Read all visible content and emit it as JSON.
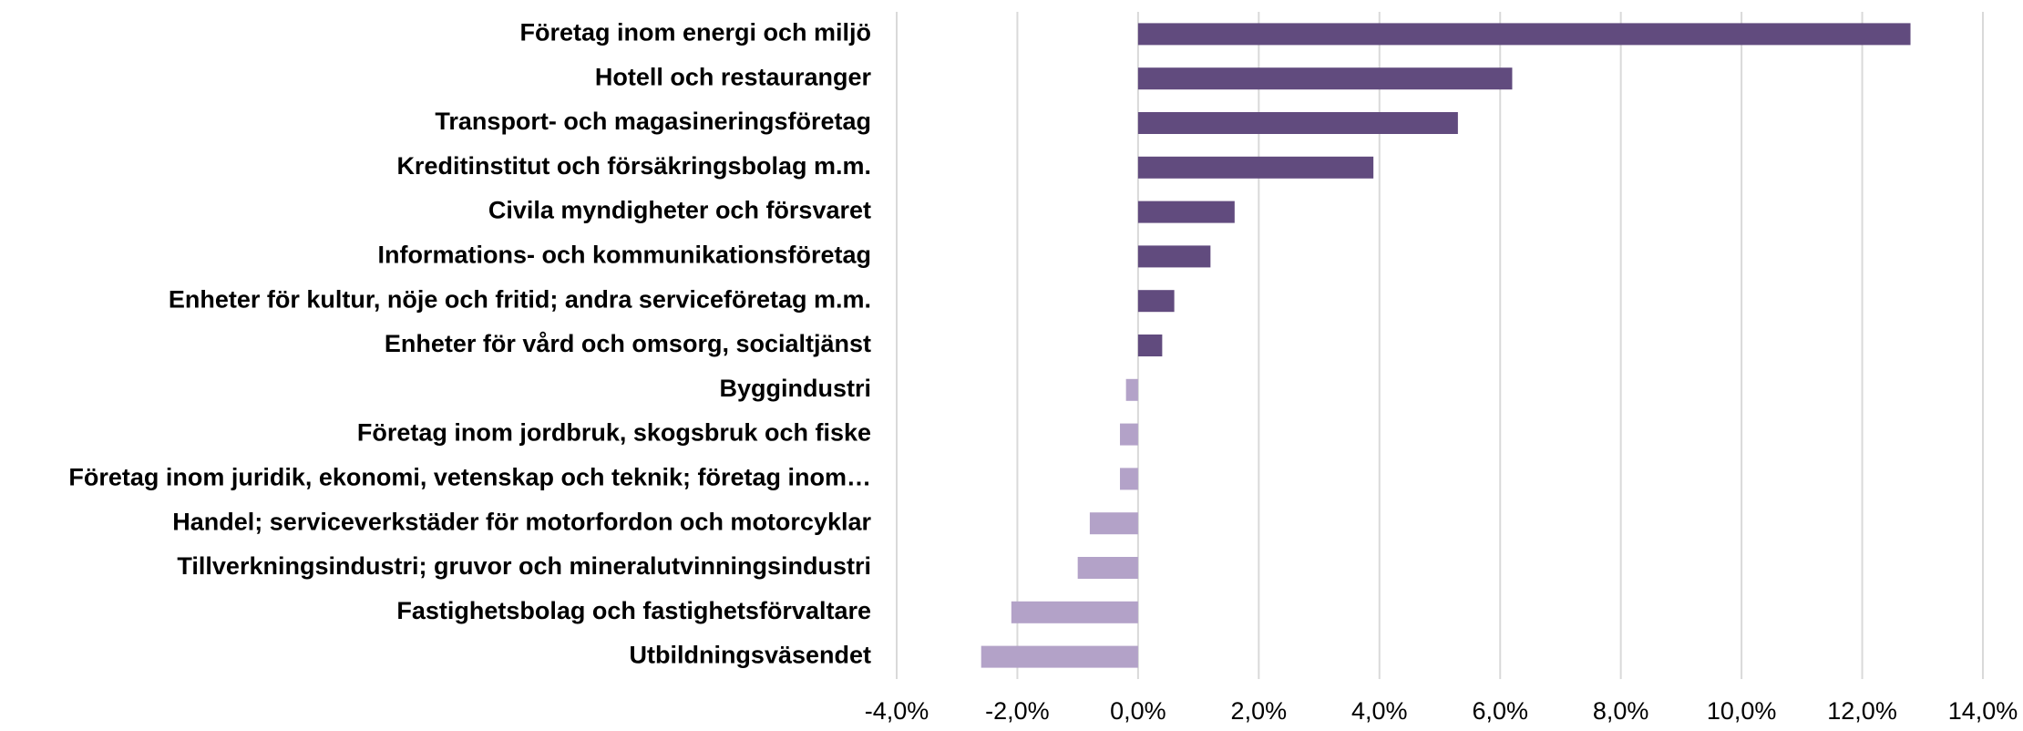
{
  "chart_data": {
    "type": "barh",
    "categories": [
      "Företag inom energi och miljö",
      "Hotell och restauranger",
      "Transport- och magasineringsföretag",
      "Kreditinstitut och försäkringsbolag m.m.",
      "Civila myndigheter och försvaret",
      "Informations- och kommunikationsföretag",
      "Enheter för kultur, nöje och fritid; andra serviceföretag m.m.",
      "Enheter för vård och omsorg, socialtjänst",
      "Byggindustri",
      "Företag inom jordbruk, skogsbruk och fiske",
      "Företag inom juridik, ekonomi, vetenskap och teknik; företag inom…",
      "Handel; serviceverkstäder för motorfordon och motorcyklar",
      "Tillverkningsindustri; gruvor och mineralutvinningsindustri",
      "Fastighetsbolag och fastighetsförvaltare",
      "Utbildningsväsendet"
    ],
    "values": [
      12.8,
      6.2,
      5.3,
      3.9,
      1.6,
      1.2,
      0.6,
      0.4,
      -0.2,
      -0.3,
      -0.3,
      -0.8,
      -1.0,
      -2.1,
      -2.6
    ],
    "color_positive": "#614b7e",
    "color_negative": "#b3a2c8",
    "xlim": [
      -4,
      14
    ],
    "xticks": [
      {
        "value": -4,
        "label": "-4,0%"
      },
      {
        "value": -2,
        "label": "-2,0%"
      },
      {
        "value": 0,
        "label": "0,0%"
      },
      {
        "value": 2,
        "label": "2,0%"
      },
      {
        "value": 4,
        "label": "4,0%"
      },
      {
        "value": 6,
        "label": "6,0%"
      },
      {
        "value": 8,
        "label": "8,0%"
      },
      {
        "value": 10,
        "label": "10,0%"
      },
      {
        "value": 12,
        "label": "12,0%"
      },
      {
        "value": 14,
        "label": "14,0%"
      }
    ],
    "grid": true
  }
}
